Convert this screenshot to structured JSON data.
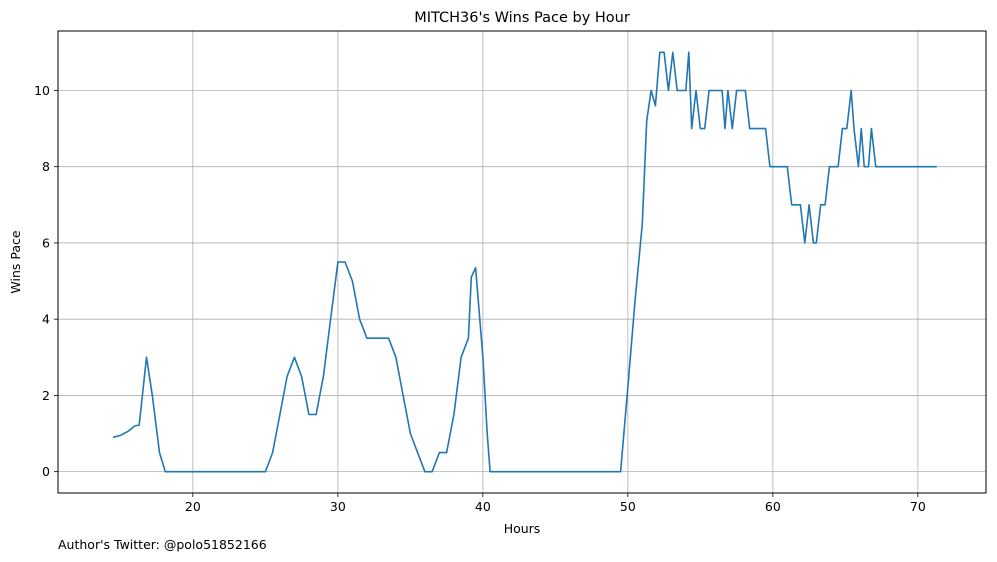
{
  "chart_data": {
    "type": "line",
    "title": "MITCH36's Wins Pace by Hour",
    "xlabel": "Hours",
    "ylabel": "Wins Pace",
    "xlim": [
      10.7,
      74.7
    ],
    "ylim": [
      -0.56,
      11.56
    ],
    "xticks": [
      20,
      30,
      40,
      50,
      60,
      70
    ],
    "yticks": [
      0,
      2,
      4,
      6,
      8,
      10
    ],
    "grid": true,
    "line_color": "#1f77b4",
    "series": [
      {
        "x": [
          14.5,
          15.0,
          15.5,
          16.0,
          16.3,
          16.8,
          17.2,
          17.7,
          18.1,
          18.5,
          19.0,
          20.0,
          22.0,
          24.0,
          25.0,
          25.5,
          26.0,
          26.5,
          27.0,
          27.5,
          28.0,
          28.5,
          29.0,
          29.5,
          30.0,
          30.5,
          31.0,
          31.5,
          32.0,
          32.5,
          33.0,
          33.5,
          34.0,
          34.5,
          35.0,
          35.5,
          36.0,
          36.5,
          37.0,
          37.5,
          38.0,
          38.5,
          39.0,
          39.2,
          39.5,
          40.0,
          40.3,
          40.5,
          41.0,
          45.0,
          49.5,
          50.0,
          50.5,
          51.0,
          51.3,
          51.6,
          51.9,
          52.2,
          52.5,
          52.8,
          53.1,
          53.4,
          53.7,
          54.0,
          54.2,
          54.4,
          54.7,
          55.0,
          55.3,
          55.6,
          55.9,
          56.2,
          56.5,
          56.7,
          56.9,
          57.2,
          57.5,
          57.8,
          58.1,
          58.4,
          58.7,
          59.0,
          59.5,
          59.8,
          60.5,
          61.0,
          61.3,
          61.6,
          61.9,
          62.2,
          62.5,
          62.8,
          63.0,
          63.3,
          63.6,
          63.9,
          64.2,
          64.5,
          64.8,
          65.1,
          65.4,
          65.6,
          65.9,
          66.1,
          66.3,
          66.6,
          66.8,
          67.1,
          68.0,
          70.0,
          71.3
        ],
        "y": [
          0.9,
          0.95,
          1.05,
          1.2,
          1.22,
          3.0,
          2.0,
          0.5,
          0.0,
          0.0,
          0.0,
          0.0,
          0.0,
          0.0,
          0.0,
          0.5,
          1.5,
          2.5,
          3.0,
          2.5,
          1.5,
          1.5,
          2.5,
          4.0,
          5.5,
          5.5,
          5.0,
          4.0,
          3.5,
          3.5,
          3.5,
          3.5,
          3.0,
          2.0,
          1.0,
          0.5,
          0.0,
          0.0,
          0.5,
          0.5,
          1.5,
          3.0,
          3.5,
          5.1,
          5.35,
          3.0,
          1.0,
          0.0,
          0.0,
          0.0,
          0.0,
          2.2,
          4.5,
          6.5,
          9.2,
          10.0,
          9.6,
          11.0,
          11.0,
          10.0,
          11.0,
          10.0,
          10.0,
          10.0,
          11.0,
          9.0,
          10.0,
          9.0,
          9.0,
          10.0,
          10.0,
          10.0,
          10.0,
          9.0,
          10.0,
          9.0,
          10.0,
          10.0,
          10.0,
          9.0,
          9.0,
          9.0,
          9.0,
          8.0,
          8.0,
          8.0,
          7.0,
          7.0,
          7.0,
          6.0,
          7.0,
          6.0,
          6.0,
          7.0,
          7.0,
          8.0,
          8.0,
          8.0,
          9.0,
          9.0,
          10.0,
          9.0,
          8.0,
          9.0,
          8.0,
          8.0,
          9.0,
          8.0,
          8.0,
          8.0,
          8.0
        ]
      }
    ]
  },
  "footnote": "Author's Twitter: @polo51852166"
}
